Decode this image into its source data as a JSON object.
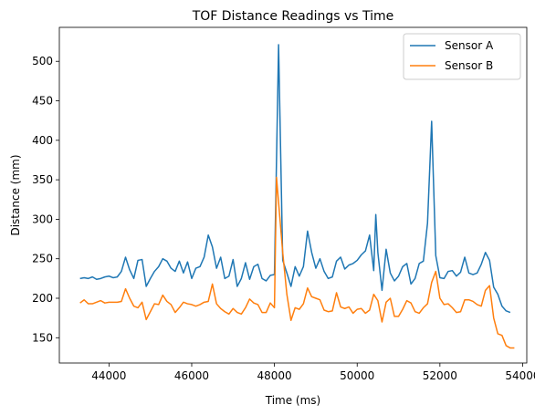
{
  "chart_data": {
    "type": "line",
    "title": "TOF Distance Readings vs Time",
    "xlabel": "Time (ms)",
    "ylabel": "Distance (mm)",
    "xlim": [
      42800,
      54100
    ],
    "ylim": [
      118,
      543
    ],
    "xticks": [
      44000,
      46000,
      48000,
      50000,
      52000,
      54000
    ],
    "yticks": [
      150,
      200,
      250,
      300,
      350,
      400,
      450,
      500
    ],
    "grid": false,
    "legend_position": "top-right",
    "series": [
      {
        "name": "Sensor A",
        "color": "#1f77b4",
        "points": [
          [
            43300,
            225
          ],
          [
            43400,
            226
          ],
          [
            43500,
            225
          ],
          [
            43600,
            227
          ],
          [
            43700,
            224
          ],
          [
            43800,
            225
          ],
          [
            43900,
            227
          ],
          [
            44000,
            228
          ],
          [
            44100,
            226
          ],
          [
            44200,
            227
          ],
          [
            44300,
            234
          ],
          [
            44400,
            252
          ],
          [
            44500,
            236
          ],
          [
            44600,
            225
          ],
          [
            44700,
            248
          ],
          [
            44800,
            249
          ],
          [
            44900,
            215
          ],
          [
            45000,
            225
          ],
          [
            45100,
            234
          ],
          [
            45200,
            240
          ],
          [
            45300,
            250
          ],
          [
            45400,
            247
          ],
          [
            45500,
            238
          ],
          [
            45600,
            234
          ],
          [
            45700,
            247
          ],
          [
            45800,
            232
          ],
          [
            45900,
            246
          ],
          [
            46000,
            225
          ],
          [
            46100,
            238
          ],
          [
            46200,
            240
          ],
          [
            46300,
            252
          ],
          [
            46400,
            280
          ],
          [
            46500,
            265
          ],
          [
            46600,
            238
          ],
          [
            46700,
            252
          ],
          [
            46800,
            225
          ],
          [
            46900,
            228
          ],
          [
            47000,
            249
          ],
          [
            47100,
            215
          ],
          [
            47200,
            225
          ],
          [
            47300,
            245
          ],
          [
            47400,
            224
          ],
          [
            47500,
            240
          ],
          [
            47600,
            243
          ],
          [
            47700,
            225
          ],
          [
            47800,
            222
          ],
          [
            47900,
            229
          ],
          [
            48000,
            230
          ],
          [
            48100,
            521
          ],
          [
            48200,
            248
          ],
          [
            48300,
            232
          ],
          [
            48400,
            215
          ],
          [
            48500,
            240
          ],
          [
            48600,
            228
          ],
          [
            48700,
            240
          ],
          [
            48800,
            285
          ],
          [
            48900,
            258
          ],
          [
            49000,
            238
          ],
          [
            49100,
            250
          ],
          [
            49200,
            234
          ],
          [
            49300,
            225
          ],
          [
            49400,
            227
          ],
          [
            49500,
            247
          ],
          [
            49600,
            252
          ],
          [
            49700,
            237
          ],
          [
            49800,
            242
          ],
          [
            49900,
            244
          ],
          [
            50000,
            248
          ],
          [
            50100,
            255
          ],
          [
            50200,
            260
          ],
          [
            50300,
            280
          ],
          [
            50400,
            235
          ],
          [
            50450,
            306
          ],
          [
            50500,
            258
          ],
          [
            50600,
            210
          ],
          [
            50700,
            262
          ],
          [
            50800,
            232
          ],
          [
            50900,
            222
          ],
          [
            51000,
            228
          ],
          [
            51100,
            240
          ],
          [
            51200,
            244
          ],
          [
            51300,
            218
          ],
          [
            51400,
            225
          ],
          [
            51500,
            244
          ],
          [
            51600,
            247
          ],
          [
            51700,
            295
          ],
          [
            51800,
            424
          ],
          [
            51900,
            254
          ],
          [
            52000,
            226
          ],
          [
            52100,
            225
          ],
          [
            52200,
            234
          ],
          [
            52300,
            235
          ],
          [
            52400,
            228
          ],
          [
            52500,
            233
          ],
          [
            52600,
            252
          ],
          [
            52700,
            232
          ],
          [
            52800,
            230
          ],
          [
            52900,
            232
          ],
          [
            53000,
            243
          ],
          [
            53100,
            258
          ],
          [
            53200,
            248
          ],
          [
            53300,
            214
          ],
          [
            53400,
            205
          ],
          [
            53500,
            190
          ],
          [
            53600,
            184
          ],
          [
            53700,
            182
          ]
        ]
      },
      {
        "name": "Sensor B",
        "color": "#ff7f0e",
        "points": [
          [
            43300,
            194
          ],
          [
            43400,
            198
          ],
          [
            43500,
            193
          ],
          [
            43600,
            193
          ],
          [
            43700,
            195
          ],
          [
            43800,
            197
          ],
          [
            43900,
            194
          ],
          [
            44000,
            195
          ],
          [
            44100,
            195
          ],
          [
            44200,
            195
          ],
          [
            44300,
            196
          ],
          [
            44400,
            212
          ],
          [
            44500,
            200
          ],
          [
            44600,
            190
          ],
          [
            44700,
            188
          ],
          [
            44800,
            195
          ],
          [
            44900,
            173
          ],
          [
            45000,
            183
          ],
          [
            45100,
            193
          ],
          [
            45200,
            192
          ],
          [
            45300,
            204
          ],
          [
            45400,
            196
          ],
          [
            45500,
            192
          ],
          [
            45600,
            182
          ],
          [
            45700,
            188
          ],
          [
            45800,
            195
          ],
          [
            45900,
            193
          ],
          [
            46000,
            192
          ],
          [
            46100,
            190
          ],
          [
            46200,
            192
          ],
          [
            46300,
            195
          ],
          [
            46400,
            196
          ],
          [
            46500,
            218
          ],
          [
            46600,
            193
          ],
          [
            46700,
            187
          ],
          [
            46800,
            183
          ],
          [
            46900,
            180
          ],
          [
            47000,
            187
          ],
          [
            47100,
            182
          ],
          [
            47200,
            180
          ],
          [
            47300,
            188
          ],
          [
            47400,
            199
          ],
          [
            47500,
            194
          ],
          [
            47600,
            192
          ],
          [
            47700,
            182
          ],
          [
            47800,
            182
          ],
          [
            47900,
            194
          ],
          [
            48000,
            188
          ],
          [
            48050,
            353
          ],
          [
            48200,
            258
          ],
          [
            48300,
            205
          ],
          [
            48400,
            172
          ],
          [
            48500,
            188
          ],
          [
            48600,
            186
          ],
          [
            48700,
            193
          ],
          [
            48800,
            213
          ],
          [
            48900,
            202
          ],
          [
            49000,
            200
          ],
          [
            49100,
            198
          ],
          [
            49200,
            185
          ],
          [
            49300,
            183
          ],
          [
            49400,
            184
          ],
          [
            49500,
            207
          ],
          [
            49600,
            189
          ],
          [
            49700,
            187
          ],
          [
            49800,
            189
          ],
          [
            49900,
            181
          ],
          [
            50000,
            186
          ],
          [
            50100,
            187
          ],
          [
            50200,
            181
          ],
          [
            50300,
            185
          ],
          [
            50400,
            205
          ],
          [
            50500,
            197
          ],
          [
            50600,
            170
          ],
          [
            50700,
            195
          ],
          [
            50800,
            200
          ],
          [
            50900,
            177
          ],
          [
            51000,
            177
          ],
          [
            51100,
            186
          ],
          [
            51200,
            197
          ],
          [
            51300,
            194
          ],
          [
            51400,
            183
          ],
          [
            51500,
            181
          ],
          [
            51600,
            188
          ],
          [
            51700,
            193
          ],
          [
            51800,
            220
          ],
          [
            51900,
            234
          ],
          [
            52000,
            200
          ],
          [
            52100,
            192
          ],
          [
            52200,
            193
          ],
          [
            52300,
            188
          ],
          [
            52400,
            182
          ],
          [
            52500,
            183
          ],
          [
            52600,
            198
          ],
          [
            52700,
            198
          ],
          [
            52800,
            196
          ],
          [
            52900,
            192
          ],
          [
            53000,
            190
          ],
          [
            53100,
            210
          ],
          [
            53200,
            216
          ],
          [
            53300,
            175
          ],
          [
            53400,
            155
          ],
          [
            53500,
            153
          ],
          [
            53600,
            140
          ],
          [
            53700,
            137
          ],
          [
            53800,
            137
          ]
        ]
      }
    ]
  }
}
